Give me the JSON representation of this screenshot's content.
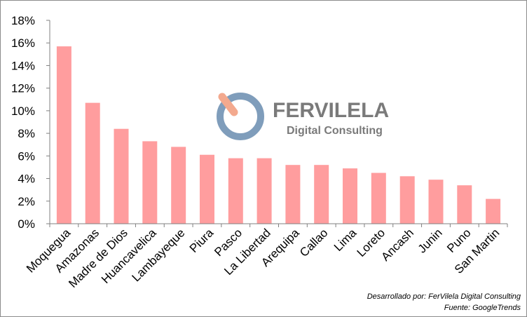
{
  "chart_data": {
    "type": "bar",
    "categories": [
      "Moquegua",
      "Amazonas",
      "Madre de Dios",
      "Huancavelica",
      "Lambayeque",
      "Piura",
      "Pasco",
      "La Libertad",
      "Arequipa",
      "Callao",
      "Lima",
      "Loreto",
      "Ancash",
      "Junin",
      "Puno",
      "San Martin"
    ],
    "values": [
      15.7,
      10.7,
      8.4,
      7.3,
      6.8,
      6.1,
      5.8,
      5.8,
      5.2,
      5.2,
      4.9,
      4.5,
      4.2,
      3.9,
      3.4,
      2.2
    ],
    "yticks": [
      "0%",
      "2%",
      "4%",
      "6%",
      "8%",
      "10%",
      "12%",
      "14%",
      "16%",
      "18%"
    ],
    "ylim": [
      0,
      18
    ],
    "grid": false,
    "bar_color": "#ff9d9e"
  },
  "logo": {
    "name": "FERVILELA",
    "tagline": "Digital Consulting",
    "ring_color": "#7f9dbb",
    "accent_color": "#f3a98e",
    "text_color": "#7a7a7a"
  },
  "credits": {
    "line1": "Desarrollado por: FerVilela Digital Consulting",
    "line2": "Fuente: GoogleTrends"
  }
}
